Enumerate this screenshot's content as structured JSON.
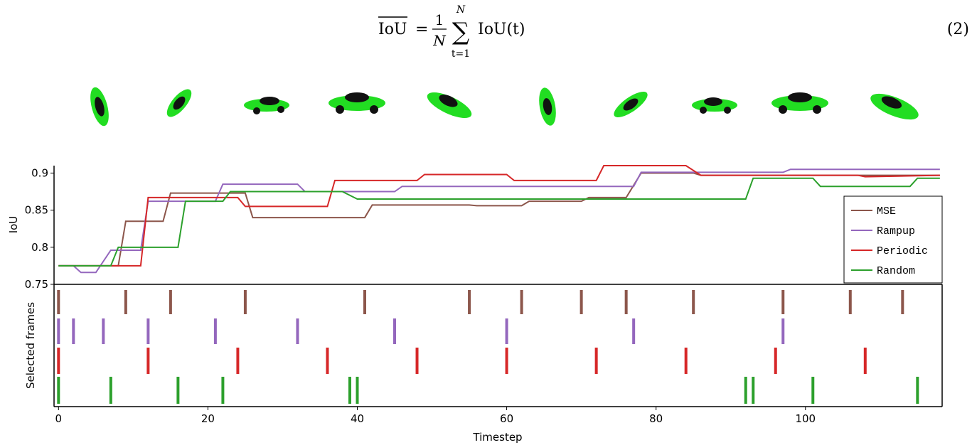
{
  "equation": {
    "lhs": "IoU",
    "equals": "=",
    "numerator": "1",
    "denominator": "N",
    "sum": "∑",
    "upper": "N",
    "lower": "t=1",
    "term": "IoU(t)",
    "number": "(2)"
  },
  "chart_data": [
    {
      "type": "line",
      "ylabel": "IoU",
      "xlim": [
        -0.6,
        118.3
      ],
      "ylim": [
        0.75,
        0.91
      ],
      "yticks": [
        0.75,
        0.8,
        0.85,
        0.9
      ],
      "legend": "lower right",
      "series": [
        {
          "name": "MSE",
          "color": "#8c564b",
          "x": [
            0,
            8,
            9,
            14,
            15,
            25,
            26,
            41,
            42,
            55,
            56,
            62,
            63,
            70,
            71,
            76,
            78,
            85,
            86,
            118
          ],
          "values": [
            0.775,
            0.775,
            0.835,
            0.835,
            0.873,
            0.873,
            0.84,
            0.84,
            0.857,
            0.857,
            0.856,
            0.856,
            0.862,
            0.862,
            0.867,
            0.867,
            0.9,
            0.9,
            0.897,
            0.897
          ]
        },
        {
          "name": "Rampup",
          "color": "#9467bd",
          "x": [
            0,
            2,
            3,
            5,
            7,
            11,
            12,
            21,
            22,
            32,
            33,
            45,
            46,
            77,
            78,
            97,
            98,
            118
          ],
          "values": [
            0.775,
            0.775,
            0.766,
            0.766,
            0.796,
            0.796,
            0.862,
            0.862,
            0.885,
            0.885,
            0.875,
            0.875,
            0.882,
            0.882,
            0.901,
            0.901,
            0.905,
            0.905
          ]
        },
        {
          "name": "Periodic",
          "color": "#d62728",
          "x": [
            0,
            11,
            12,
            24,
            25,
            36,
            37,
            48,
            49,
            60,
            61,
            72,
            73,
            84,
            86,
            107,
            108,
            118
          ],
          "values": [
            0.775,
            0.775,
            0.867,
            0.867,
            0.855,
            0.855,
            0.89,
            0.89,
            0.898,
            0.898,
            0.89,
            0.89,
            0.91,
            0.91,
            0.897,
            0.897,
            0.895,
            0.897
          ]
        },
        {
          "name": "Random",
          "color": "#2ca02c",
          "x": [
            0,
            7,
            8,
            16,
            17,
            22,
            23,
            38,
            40,
            92,
            93,
            101,
            102,
            114,
            115,
            118
          ],
          "values": [
            0.775,
            0.775,
            0.8,
            0.8,
            0.862,
            0.862,
            0.875,
            0.875,
            0.865,
            0.865,
            0.893,
            0.893,
            0.882,
            0.882,
            0.893,
            0.893
          ]
        }
      ]
    },
    {
      "type": "event",
      "ylabel": "Selected frames",
      "xlabel": "Timestep",
      "xlim": [
        -0.6,
        118.3
      ],
      "xticks": [
        0,
        20,
        40,
        60,
        80,
        100
      ],
      "series": [
        {
          "color": "#8c564b",
          "x": [
            0,
            9,
            15,
            25,
            41,
            55,
            62,
            70,
            76,
            85,
            97,
            106,
            113
          ]
        },
        {
          "color": "#9467bd",
          "x": [
            0,
            2,
            6,
            12,
            21,
            32,
            45,
            60,
            77,
            97
          ]
        },
        {
          "color": "#d62728",
          "x": [
            0,
            12,
            24,
            36,
            48,
            60,
            72,
            84,
            96,
            108
          ]
        },
        {
          "color": "#2ca02c",
          "x": [
            0,
            7,
            16,
            22,
            39,
            40,
            92,
            93,
            101,
            115
          ]
        }
      ]
    }
  ]
}
